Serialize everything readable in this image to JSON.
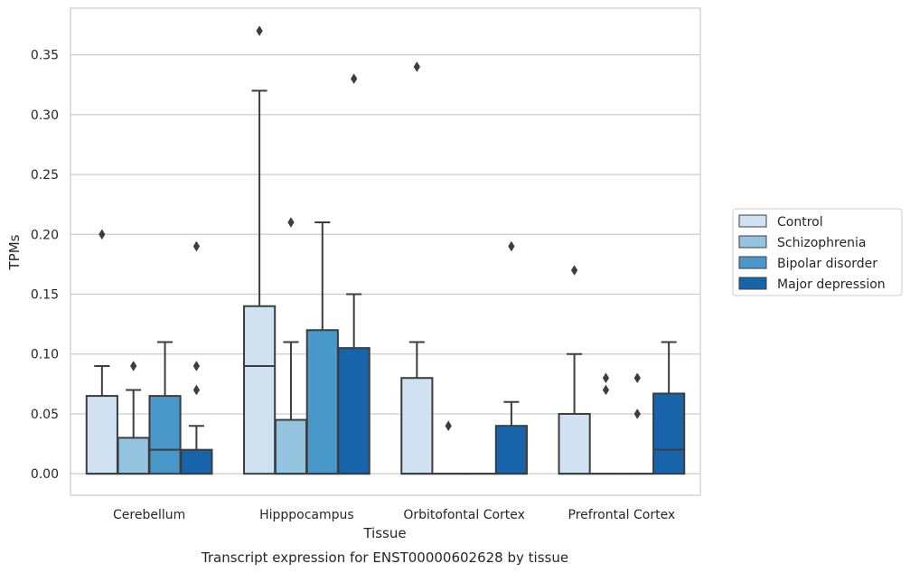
{
  "chart_data": {
    "type": "boxplot",
    "caption": "Transcript expression for ENST00000602628 by tissue",
    "xlabel": "Tissue",
    "ylabel": "TPMs",
    "ylim": [
      -0.018,
      0.389
    ],
    "yticks": [
      0.0,
      0.05,
      0.1,
      0.15,
      0.2,
      0.25,
      0.3,
      0.35
    ],
    "ytick_labels": [
      "0.00",
      "0.05",
      "0.10",
      "0.15",
      "0.20",
      "0.25",
      "0.30",
      "0.35"
    ],
    "grid": "horizontal",
    "legend_position": "right",
    "categories": [
      "Cerebellum",
      "Hipppocampus",
      "Orbitofontal Cortex",
      "Prefrontal Cortex"
    ],
    "series": [
      {
        "name": "Control",
        "color": "#d0e1f2",
        "boxes": [
          {
            "q1": 0.0,
            "median": 0.0,
            "q3": 0.065,
            "whisker_low": 0.0,
            "whisker_high": 0.09,
            "outliers": [
              0.2
            ]
          },
          {
            "q1": 0.0,
            "median": 0.09,
            "q3": 0.14,
            "whisker_low": 0.0,
            "whisker_high": 0.32,
            "outliers": [
              0.37
            ]
          },
          {
            "q1": 0.0,
            "median": 0.0,
            "q3": 0.08,
            "whisker_low": 0.0,
            "whisker_high": 0.11,
            "outliers": [
              0.34
            ]
          },
          {
            "q1": 0.0,
            "median": 0.0,
            "q3": 0.05,
            "whisker_low": 0.0,
            "whisker_high": 0.1,
            "outliers": [
              0.17
            ]
          }
        ]
      },
      {
        "name": "Schizophrenia",
        "color": "#94c4df",
        "boxes": [
          {
            "q1": 0.0,
            "median": 0.0,
            "q3": 0.03,
            "whisker_low": 0.0,
            "whisker_high": 0.07,
            "outliers": [
              0.09
            ]
          },
          {
            "q1": 0.0,
            "median": 0.0,
            "q3": 0.045,
            "whisker_low": 0.0,
            "whisker_high": 0.11,
            "outliers": [
              0.21
            ]
          },
          {
            "q1": 0.0,
            "median": 0.0,
            "q3": 0.0,
            "whisker_low": 0.0,
            "whisker_high": 0.0,
            "outliers": [
              0.04
            ]
          },
          {
            "q1": 0.0,
            "median": 0.0,
            "q3": 0.0,
            "whisker_low": 0.0,
            "whisker_high": 0.0,
            "outliers": [
              0.08,
              0.07
            ]
          }
        ]
      },
      {
        "name": "Bipolar disorder",
        "color": "#4a98c9",
        "boxes": [
          {
            "q1": 0.0,
            "median": 0.02,
            "q3": 0.065,
            "whisker_low": 0.0,
            "whisker_high": 0.11,
            "outliers": []
          },
          {
            "q1": 0.0,
            "median": 0.0,
            "q3": 0.12,
            "whisker_low": 0.0,
            "whisker_high": 0.21,
            "outliers": []
          },
          {
            "q1": 0.0,
            "median": 0.0,
            "q3": 0.0,
            "whisker_low": 0.0,
            "whisker_high": 0.0,
            "outliers": []
          },
          {
            "q1": 0.0,
            "median": 0.0,
            "q3": 0.0,
            "whisker_low": 0.0,
            "whisker_high": 0.0,
            "outliers": [
              0.08,
              0.05
            ]
          }
        ]
      },
      {
        "name": "Major depression",
        "color": "#1764ab",
        "boxes": [
          {
            "q1": 0.0,
            "median": 0.0,
            "q3": 0.02,
            "whisker_low": 0.0,
            "whisker_high": 0.04,
            "outliers": [
              0.19,
              0.09,
              0.07
            ]
          },
          {
            "q1": 0.0,
            "median": 0.0,
            "q3": 0.105,
            "whisker_low": 0.0,
            "whisker_high": 0.15,
            "outliers": [
              0.33
            ]
          },
          {
            "q1": 0.0,
            "median": 0.0,
            "q3": 0.04,
            "whisker_low": 0.0,
            "whisker_high": 0.06,
            "outliers": [
              0.19
            ]
          },
          {
            "q1": 0.0,
            "median": 0.02,
            "q3": 0.067,
            "whisker_low": 0.0,
            "whisker_high": 0.11,
            "outliers": []
          }
        ]
      }
    ]
  }
}
